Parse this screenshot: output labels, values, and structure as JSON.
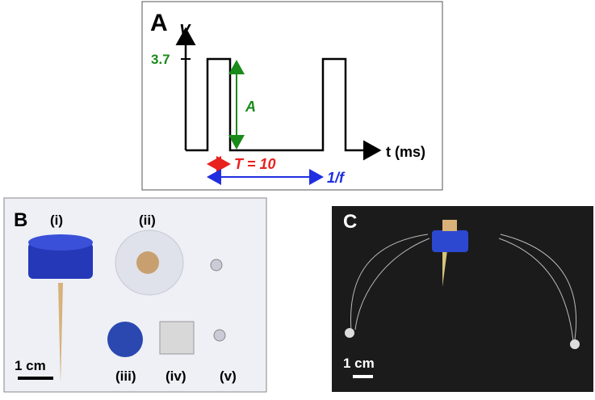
{
  "panel_a": {
    "label": "A",
    "y_axis": "V",
    "level": "3.7",
    "amplitude": "A",
    "x_axis": "t (ms)",
    "period": "T = 10",
    "frequency": "1/f"
  },
  "panel_b": {
    "label": "B",
    "items": [
      "(i)",
      "(ii)",
      "(iii)",
      "(iv)",
      "(v)"
    ],
    "scale": "1 cm"
  },
  "panel_c": {
    "label": "C",
    "scale": "1 cm"
  }
}
